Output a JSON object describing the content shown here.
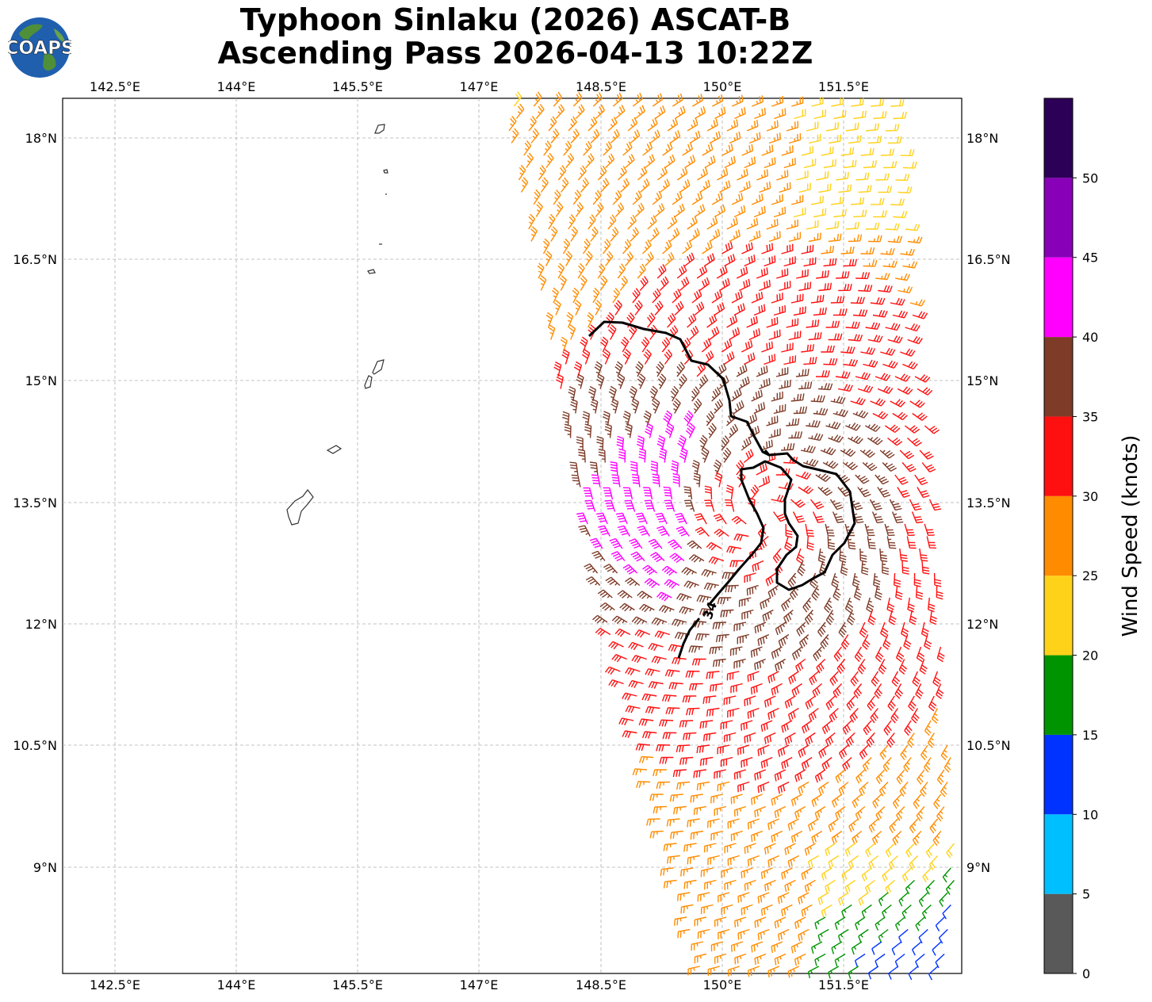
{
  "title": {
    "line1": "Typhoon Sinlaku (2026) ASCAT-B",
    "line2": "Ascending Pass 2026-04-13 10:22Z"
  },
  "logo": {
    "text": "COAPS",
    "icon": "globe-logo-icon"
  },
  "axes": {
    "lon_ticks": [
      "142.5°E",
      "144°E",
      "145.5°E",
      "147°E",
      "148.5°E",
      "150°E",
      "151.5°E"
    ],
    "lat_ticks": [
      "18°N",
      "16.5°N",
      "15°N",
      "13.5°N",
      "12°N",
      "10.5°N",
      "9°N"
    ],
    "lon_range": [
      141.85,
      152.95
    ],
    "lat_range": [
      7.85,
      18.65
    ],
    "grid": true
  },
  "contour": {
    "label": "34",
    "level_knots": 34
  },
  "colorbar": {
    "label": "Wind Speed (knots)",
    "ticks": [
      "0",
      "5",
      "10",
      "15",
      "20",
      "25",
      "30",
      "35",
      "40",
      "45",
      "50"
    ],
    "bins": [
      {
        "range": "0-5",
        "color": "#595959"
      },
      {
        "range": "5-10",
        "color": "#00bfff"
      },
      {
        "range": "10-15",
        "color": "#0033ff"
      },
      {
        "range": "15-20",
        "color": "#009400"
      },
      {
        "range": "20-25",
        "color": "#ffd21a"
      },
      {
        "range": "25-30",
        "color": "#ff8c00"
      },
      {
        "range": "30-35",
        "color": "#ff1010"
      },
      {
        "range": "35-40",
        "color": "#7e3b28"
      },
      {
        "range": "40-45",
        "color": "#ff00ff"
      },
      {
        "range": "45-50",
        "color": "#8800b8"
      },
      {
        "range": "50+",
        "color": "#2d0057"
      }
    ]
  }
}
